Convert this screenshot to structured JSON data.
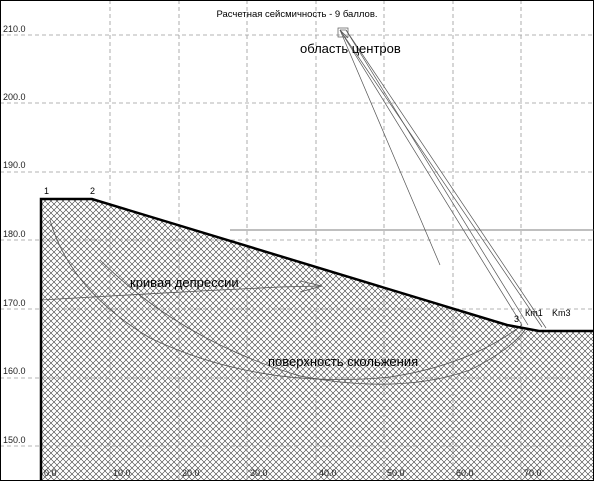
{
  "title": "Расчетная сейсмичность - 9 баллов.",
  "axes": {
    "x_ticks": [
      "0.0",
      "10.0",
      "20.0",
      "30.0",
      "40.0",
      "50.0",
      "60.0",
      "70.0"
    ],
    "y_ticks": [
      "150.0",
      "160.0",
      "170.0",
      "180.0",
      "190.0",
      "200.0",
      "210.0"
    ]
  },
  "labels": {
    "centers_area": "область центров",
    "depression_curve": "кривая депрессии",
    "slip_surface": "поверхность скольжения",
    "point_1": "1",
    "point_2": "2",
    "point_3": "3",
    "kmin1": "Кm1",
    "kmin3": "Km3"
  },
  "colors": {
    "grid": "#9a9a9a",
    "hatch": "#333333",
    "ground": "#000000",
    "thin": "#555555"
  }
}
